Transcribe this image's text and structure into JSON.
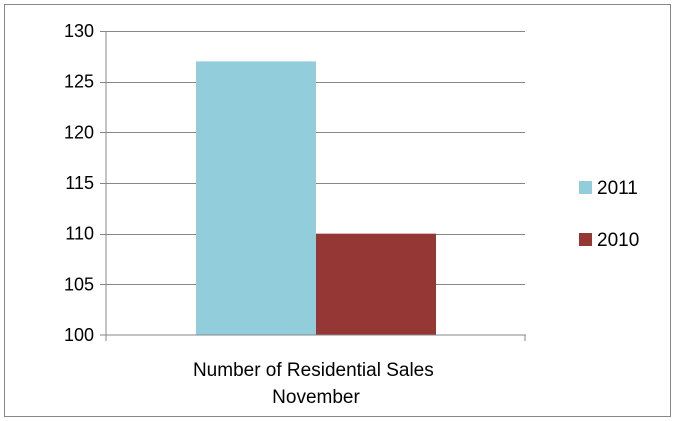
{
  "chart_data": {
    "type": "bar",
    "categories": [
      "Number of Residential Sales November"
    ],
    "category_lines": [
      "Number of Residential Sales",
      "November"
    ],
    "series": [
      {
        "name": "2011",
        "values": [
          127
        ],
        "color": "#92CDDC"
      },
      {
        "name": "2010",
        "values": [
          110
        ],
        "color": "#953735"
      }
    ],
    "yticks": [
      "100",
      "105",
      "110",
      "115",
      "120",
      "125",
      "130"
    ],
    "ylim": [
      100,
      130
    ],
    "ystep": 5,
    "grid": true,
    "legend": "right",
    "title": "",
    "xlabel": "",
    "ylabel": ""
  }
}
